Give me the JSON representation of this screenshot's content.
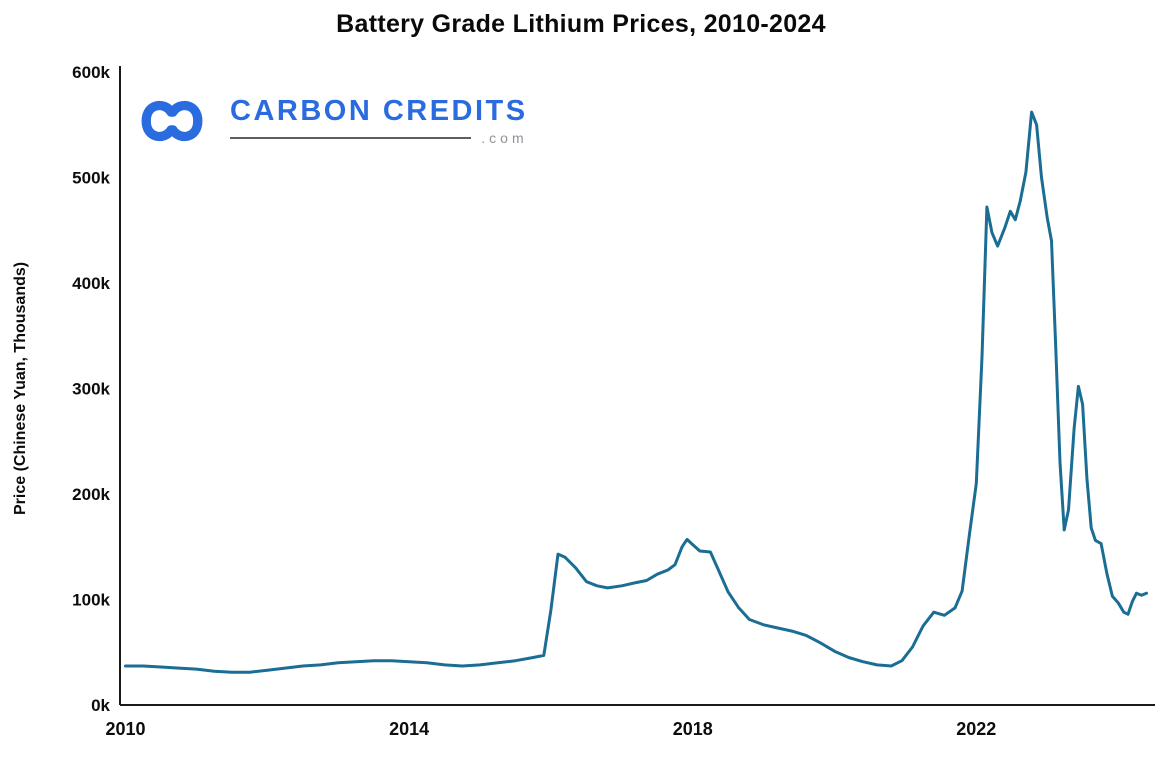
{
  "chart_data": {
    "type": "line",
    "title": "Battery Grade Lithium Prices, 2010-2024",
    "ylabel": "Price (Chinese Yuan, Thousands)",
    "xlabel": "",
    "x_ticks": [
      2010,
      2014,
      2018,
      2022
    ],
    "x_tick_labels": [
      "2010",
      "2014",
      "2018",
      "2022"
    ],
    "y_ticks": [
      0,
      100,
      200,
      300,
      400,
      500,
      600
    ],
    "y_tick_labels": [
      "0k",
      "100k",
      "200k",
      "300k",
      "400k",
      "500k",
      "600k"
    ],
    "xlim": [
      2009.95,
      2024.45
    ],
    "ylim": [
      0,
      600
    ],
    "grid": false,
    "legend": "none",
    "line_color": "#1b6d94",
    "line_width": 3,
    "axis_color": "#1a1a1a",
    "series": [
      {
        "name": "Battery grade lithium price",
        "points": [
          [
            2010.0,
            37
          ],
          [
            2010.25,
            37
          ],
          [
            2010.5,
            36
          ],
          [
            2010.75,
            35
          ],
          [
            2011.0,
            34
          ],
          [
            2011.25,
            32
          ],
          [
            2011.5,
            31
          ],
          [
            2011.75,
            31
          ],
          [
            2012.0,
            33
          ],
          [
            2012.25,
            35
          ],
          [
            2012.5,
            37
          ],
          [
            2012.75,
            38
          ],
          [
            2013.0,
            40
          ],
          [
            2013.25,
            41
          ],
          [
            2013.5,
            42
          ],
          [
            2013.75,
            42
          ],
          [
            2014.0,
            41
          ],
          [
            2014.25,
            40
          ],
          [
            2014.5,
            38
          ],
          [
            2014.75,
            37
          ],
          [
            2015.0,
            38
          ],
          [
            2015.25,
            40
          ],
          [
            2015.5,
            42
          ],
          [
            2015.75,
            45
          ],
          [
            2015.9,
            47
          ],
          [
            2016.0,
            90
          ],
          [
            2016.1,
            143
          ],
          [
            2016.2,
            140
          ],
          [
            2016.35,
            130
          ],
          [
            2016.5,
            117
          ],
          [
            2016.65,
            113
          ],
          [
            2016.8,
            111
          ],
          [
            2017.0,
            113
          ],
          [
            2017.2,
            116
          ],
          [
            2017.35,
            118
          ],
          [
            2017.5,
            124
          ],
          [
            2017.65,
            128
          ],
          [
            2017.75,
            133
          ],
          [
            2017.85,
            150
          ],
          [
            2017.92,
            157
          ],
          [
            2018.0,
            152
          ],
          [
            2018.1,
            146
          ],
          [
            2018.25,
            145
          ],
          [
            2018.35,
            130
          ],
          [
            2018.5,
            107
          ],
          [
            2018.65,
            92
          ],
          [
            2018.8,
            81
          ],
          [
            2019.0,
            76
          ],
          [
            2019.2,
            73
          ],
          [
            2019.4,
            70
          ],
          [
            2019.6,
            66
          ],
          [
            2019.8,
            59
          ],
          [
            2020.0,
            51
          ],
          [
            2020.2,
            45
          ],
          [
            2020.4,
            41
          ],
          [
            2020.6,
            38
          ],
          [
            2020.8,
            37
          ],
          [
            2020.95,
            42
          ],
          [
            2021.1,
            55
          ],
          [
            2021.25,
            75
          ],
          [
            2021.4,
            88
          ],
          [
            2021.55,
            85
          ],
          [
            2021.7,
            92
          ],
          [
            2021.8,
            108
          ],
          [
            2021.9,
            160
          ],
          [
            2022.0,
            210
          ],
          [
            2022.08,
            330
          ],
          [
            2022.15,
            472
          ],
          [
            2022.22,
            448
          ],
          [
            2022.3,
            435
          ],
          [
            2022.4,
            452
          ],
          [
            2022.48,
            468
          ],
          [
            2022.55,
            460
          ],
          [
            2022.62,
            478
          ],
          [
            2022.7,
            505
          ],
          [
            2022.78,
            562
          ],
          [
            2022.85,
            550
          ],
          [
            2022.92,
            500
          ],
          [
            2023.0,
            462
          ],
          [
            2023.06,
            440
          ],
          [
            2023.12,
            340
          ],
          [
            2023.18,
            230
          ],
          [
            2023.24,
            166
          ],
          [
            2023.3,
            185
          ],
          [
            2023.38,
            262
          ],
          [
            2023.44,
            302
          ],
          [
            2023.5,
            285
          ],
          [
            2023.56,
            215
          ],
          [
            2023.62,
            168
          ],
          [
            2023.68,
            156
          ],
          [
            2023.76,
            153
          ],
          [
            2023.84,
            125
          ],
          [
            2023.92,
            103
          ],
          [
            2024.0,
            97
          ],
          [
            2024.08,
            88
          ],
          [
            2024.14,
            86
          ],
          [
            2024.2,
            98
          ],
          [
            2024.26,
            106
          ],
          [
            2024.33,
            104
          ],
          [
            2024.4,
            106
          ]
        ]
      }
    ]
  },
  "logo": {
    "wordmark": "CARBON CREDITS",
    "suffix": ".com",
    "brand_color": "#2b6be0",
    "suffix_color": "#8d939b",
    "rule_color": "#596066",
    "icon": "infinity-loops-icon"
  }
}
